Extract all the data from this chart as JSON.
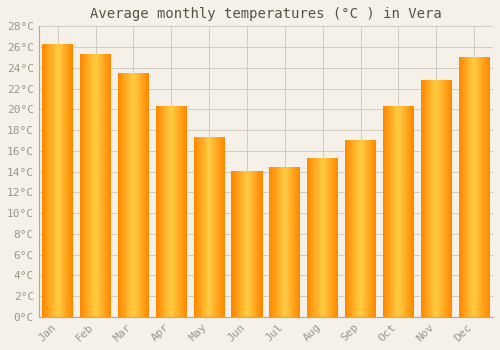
{
  "title": "Average monthly temperatures (°C ) in Vera",
  "months": [
    "Jan",
    "Feb",
    "Mar",
    "Apr",
    "May",
    "Jun",
    "Jul",
    "Aug",
    "Sep",
    "Oct",
    "Nov",
    "Dec"
  ],
  "temperatures": [
    26.3,
    25.3,
    23.5,
    20.3,
    17.3,
    14.1,
    14.4,
    15.3,
    17.0,
    20.3,
    22.8,
    25.0
  ],
  "bar_color_main": "#FFAA00",
  "bar_color_light": "#FFD060",
  "bar_color_dark": "#FF8800",
  "ylim": [
    0,
    28
  ],
  "ytick_step": 2,
  "background_color": "#f5f0e8",
  "plot_bg_color": "#f5f0e8",
  "grid_color": "#d0ccc0",
  "title_fontsize": 10,
  "tick_fontsize": 8,
  "tick_color": "#999988"
}
